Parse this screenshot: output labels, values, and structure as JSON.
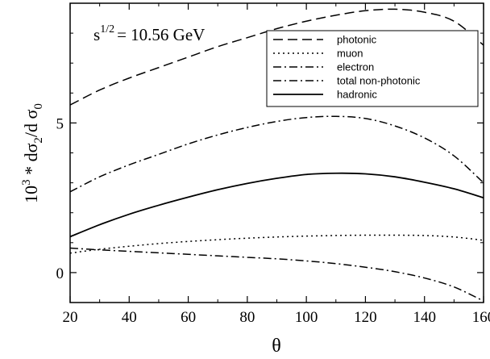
{
  "chart_data": {
    "type": "line",
    "title": "",
    "annotation": {
      "base": "s",
      "exponent": "1/2",
      "text": "= 10.56 GeV"
    },
    "xlabel": "θ",
    "ylabel": {
      "prefix": "10",
      "exp": "3",
      "mid": " * dσ",
      "sub1": "2",
      "mid2": "/d σ",
      "sub2": "0"
    },
    "xlim": [
      20,
      160
    ],
    "ylim": [
      -1,
      9
    ],
    "xticks": [
      20,
      40,
      60,
      80,
      100,
      120,
      140,
      160
    ],
    "yticks": [
      0,
      5
    ],
    "ytick_labels": [
      "0",
      "5"
    ],
    "grid": false,
    "legend_position": "top-right",
    "x": [
      20,
      30,
      40,
      50,
      60,
      70,
      80,
      90,
      100,
      110,
      120,
      130,
      140,
      150,
      160
    ],
    "series": [
      {
        "name": "photonic",
        "dash": "dashed",
        "values": [
          5.6,
          6.1,
          6.5,
          6.85,
          7.2,
          7.55,
          7.85,
          8.15,
          8.4,
          8.6,
          8.75,
          8.8,
          8.7,
          8.4,
          7.6
        ]
      },
      {
        "name": "muon",
        "dash": "dotted",
        "values": [
          0.65,
          0.78,
          0.88,
          0.97,
          1.04,
          1.1,
          1.15,
          1.19,
          1.22,
          1.24,
          1.25,
          1.25,
          1.24,
          1.19,
          1.08
        ]
      },
      {
        "name": "electron",
        "dash": "dashdot",
        "values": [
          0.82,
          0.76,
          0.71,
          0.66,
          0.61,
          0.56,
          0.51,
          0.46,
          0.39,
          0.3,
          0.18,
          0.03,
          -0.18,
          -0.48,
          -0.95
        ]
      },
      {
        "name": "total non-photonic",
        "dash": "dashdot",
        "values": [
          2.7,
          3.2,
          3.6,
          3.95,
          4.3,
          4.6,
          4.85,
          5.05,
          5.18,
          5.22,
          5.15,
          4.9,
          4.5,
          3.9,
          3.0
        ]
      },
      {
        "name": "hadronic",
        "dash": "solid",
        "values": [
          1.2,
          1.6,
          1.95,
          2.25,
          2.52,
          2.77,
          2.98,
          3.15,
          3.28,
          3.32,
          3.3,
          3.2,
          3.02,
          2.8,
          2.5
        ]
      }
    ]
  }
}
